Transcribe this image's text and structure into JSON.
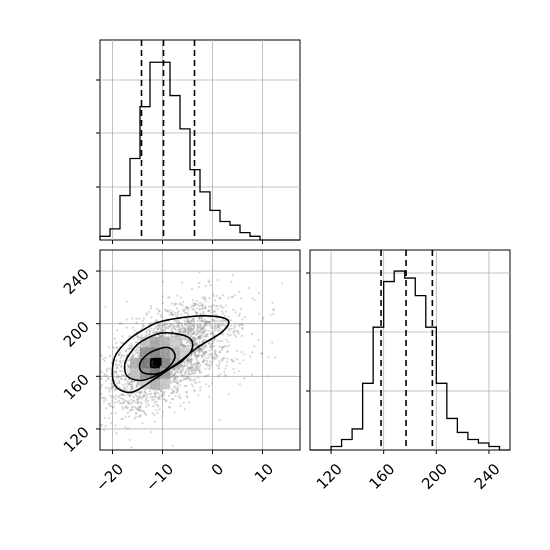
{
  "chart_data": {
    "type": "corner_plot",
    "panels": {
      "hist_x": {
        "type": "histogram",
        "x_range": [
          -22.5,
          17.5
        ],
        "bin_edges": [
          -22.5,
          -20.5,
          -18.5,
          -16.5,
          -14.5,
          -12.5,
          -10.5,
          -8.5,
          -6.5,
          -4.5,
          -2.5,
          -0.5,
          1.5,
          3.5,
          5.5,
          7.5,
          9.5,
          11.5,
          13.5,
          15.5,
          17.5
        ],
        "counts": [
          1,
          3,
          12,
          22,
          36,
          48,
          48,
          39,
          30,
          19,
          13,
          8,
          5,
          4,
          2,
          1,
          0,
          0,
          0,
          0
        ],
        "quantile_lines": [
          -14.2,
          -9.8,
          -3.6
        ],
        "x_grid": [
          -20,
          -10,
          0,
          10
        ]
      },
      "joint": {
        "type": "2d_histogram_contour",
        "x_range": [
          -22.5,
          17.5
        ],
        "y_range": [
          104,
          256
        ],
        "x_ticks": [
          -20,
          -10,
          0,
          10
        ],
        "x_tick_labels": [
          "−20",
          "−10",
          "0",
          "10"
        ],
        "y_ticks": [
          120,
          160,
          200,
          240
        ],
        "y_tick_labels": [
          "120",
          "160",
          "200",
          "240"
        ],
        "peak": [
          -11,
          171
        ],
        "density_cells": [
          {
            "x": -11.5,
            "y": 170,
            "shade": 0.0
          },
          {
            "x": -13.5,
            "y": 170,
            "shade": 0.45
          },
          {
            "x": -9.5,
            "y": 170,
            "shade": 0.5
          },
          {
            "x": -11.5,
            "y": 162,
            "shade": 0.45
          },
          {
            "x": -11.5,
            "y": 178,
            "shade": 0.5
          },
          {
            "x": -13.5,
            "y": 178,
            "shade": 0.55
          },
          {
            "x": -9.5,
            "y": 178,
            "shade": 0.6
          },
          {
            "x": -13.5,
            "y": 162,
            "shade": 0.55
          },
          {
            "x": -9.5,
            "y": 162,
            "shade": 0.6
          },
          {
            "x": -15.5,
            "y": 170,
            "shade": 0.68
          },
          {
            "x": -7.5,
            "y": 170,
            "shade": 0.7
          },
          {
            "x": -11.5,
            "y": 186,
            "shade": 0.65
          },
          {
            "x": -9.5,
            "y": 186,
            "shade": 0.7
          },
          {
            "x": -7.5,
            "y": 178,
            "shade": 0.72
          },
          {
            "x": -11.5,
            "y": 154,
            "shade": 0.68
          },
          {
            "x": -13.5,
            "y": 186,
            "shade": 0.75
          },
          {
            "x": -15.5,
            "y": 162,
            "shade": 0.75
          },
          {
            "x": -7.5,
            "y": 186,
            "shade": 0.8
          },
          {
            "x": -5.5,
            "y": 178,
            "shade": 0.82
          },
          {
            "x": -13.5,
            "y": 154,
            "shade": 0.8
          },
          {
            "x": -9.5,
            "y": 154,
            "shade": 0.78
          }
        ],
        "contours": [
          [
            [
              -11.5,
              172
            ],
            [
              -10.8,
              169
            ],
            [
              -11,
              167
            ],
            [
              -12,
              167
            ],
            [
              -12.4,
              170
            ],
            [
              -12,
              173
            ],
            [
              -11.5,
              172
            ]
          ],
          [
            [
              -12.5,
              178
            ],
            [
              -9,
              182
            ],
            [
              -7.5,
              176
            ],
            [
              -8.5,
              168
            ],
            [
              -11,
              162
            ],
            [
              -14,
              163
            ],
            [
              -14.5,
              170
            ],
            [
              -12.5,
              178
            ]
          ],
          [
            [
              -14,
              187
            ],
            [
              -10,
              193
            ],
            [
              -5,
              190
            ],
            [
              -4,
              182
            ],
            [
              -6,
              172
            ],
            [
              -10,
              163
            ],
            [
              -14,
              157
            ],
            [
              -17,
              160
            ],
            [
              -17.5,
              170
            ],
            [
              -16,
              180
            ],
            [
              -14,
              187
            ]
          ],
          [
            [
              -14,
              195
            ],
            [
              -10,
              202
            ],
            [
              -2,
              206
            ],
            [
              3,
              203
            ],
            [
              2,
              194
            ],
            [
              -3,
              182
            ],
            [
              -7,
              170
            ],
            [
              -12,
              157
            ],
            [
              -16,
              148
            ],
            [
              -19,
              151
            ],
            [
              -20,
              160
            ],
            [
              -19.5,
              175
            ],
            [
              -17,
              187
            ],
            [
              -14,
              195
            ]
          ]
        ]
      },
      "hist_y": {
        "type": "histogram",
        "x_range": [
          104,
          256
        ],
        "bin_edges": [
          104,
          112,
          120,
          128,
          136,
          144,
          152,
          160,
          168,
          176,
          184,
          192,
          200,
          208,
          216,
          224,
          232,
          240,
          248,
          256
        ],
        "counts": [
          0,
          0,
          1,
          3,
          6,
          19,
          35,
          48,
          51,
          49,
          44,
          35,
          19,
          9,
          5,
          3,
          2,
          1,
          0
        ],
        "quantile_lines": [
          158,
          177,
          197
        ],
        "x_ticks": [
          120,
          160,
          200,
          240
        ],
        "x_tick_labels": [
          "120",
          "160",
          "200",
          "240"
        ]
      }
    }
  }
}
